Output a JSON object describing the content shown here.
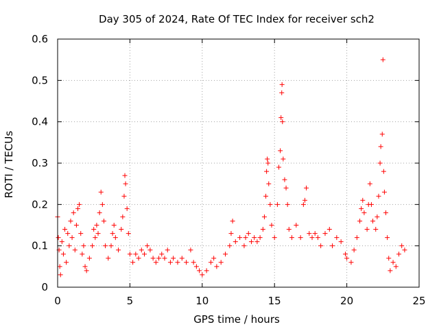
{
  "chart_data": {
    "type": "scatter",
    "title": "Day 305 of 2024, Rate Of TEC Index for receiver sch2",
    "xlabel": "GPS time / hours",
    "ylabel": "ROTI / TECUs",
    "xlim": [
      0,
      25
    ],
    "ylim": [
      0,
      0.6
    ],
    "xticks": [
      0,
      5,
      10,
      15,
      20,
      25
    ],
    "xtick_labels": [
      "0",
      "5",
      "10",
      "15",
      "20",
      "25"
    ],
    "yticks": [
      0,
      0.1,
      0.2,
      0.3,
      0.4,
      0.5,
      0.6
    ],
    "ytick_labels": [
      "0",
      "0.1",
      "0.2",
      "0.3",
      "0.4",
      "0.5",
      "0.6"
    ],
    "grid": true,
    "marker": "+",
    "series": [
      {
        "name": "sch2",
        "color": "#ff0000",
        "points": [
          [
            0.0,
            0.17
          ],
          [
            0.05,
            0.12
          ],
          [
            0.1,
            0.09
          ],
          [
            0.15,
            0.05
          ],
          [
            0.2,
            0.03
          ],
          [
            0.3,
            0.11
          ],
          [
            0.4,
            0.08
          ],
          [
            0.5,
            0.14
          ],
          [
            0.6,
            0.06
          ],
          [
            0.7,
            0.13
          ],
          [
            0.8,
            0.1
          ],
          [
            0.9,
            0.16
          ],
          [
            1.0,
            0.12
          ],
          [
            1.1,
            0.18
          ],
          [
            1.2,
            0.09
          ],
          [
            1.3,
            0.15
          ],
          [
            1.4,
            0.19
          ],
          [
            1.5,
            0.2
          ],
          [
            1.6,
            0.13
          ],
          [
            1.7,
            0.08
          ],
          [
            1.8,
            0.1
          ],
          [
            1.9,
            0.05
          ],
          [
            2.0,
            0.04
          ],
          [
            2.2,
            0.07
          ],
          [
            2.4,
            0.1
          ],
          [
            2.5,
            0.14
          ],
          [
            2.6,
            0.12
          ],
          [
            2.7,
            0.15
          ],
          [
            2.8,
            0.13
          ],
          [
            2.9,
            0.18
          ],
          [
            3.0,
            0.23
          ],
          [
            3.1,
            0.2
          ],
          [
            3.2,
            0.16
          ],
          [
            3.3,
            0.1
          ],
          [
            3.5,
            0.07
          ],
          [
            3.7,
            0.1
          ],
          [
            3.8,
            0.13
          ],
          [
            3.9,
            0.15
          ],
          [
            4.0,
            0.12
          ],
          [
            4.2,
            0.09
          ],
          [
            4.4,
            0.14
          ],
          [
            4.5,
            0.17
          ],
          [
            4.6,
            0.22
          ],
          [
            4.65,
            0.27
          ],
          [
            4.7,
            0.25
          ],
          [
            4.8,
            0.19
          ],
          [
            4.9,
            0.13
          ],
          [
            5.0,
            0.08
          ],
          [
            5.2,
            0.06
          ],
          [
            5.4,
            0.08
          ],
          [
            5.6,
            0.07
          ],
          [
            5.8,
            0.09
          ],
          [
            6.0,
            0.08
          ],
          [
            6.2,
            0.1
          ],
          [
            6.4,
            0.09
          ],
          [
            6.6,
            0.07
          ],
          [
            6.8,
            0.06
          ],
          [
            7.0,
            0.07
          ],
          [
            7.2,
            0.08
          ],
          [
            7.4,
            0.07
          ],
          [
            7.6,
            0.09
          ],
          [
            7.8,
            0.06
          ],
          [
            8.0,
            0.07
          ],
          [
            8.3,
            0.06
          ],
          [
            8.6,
            0.07
          ],
          [
            8.9,
            0.06
          ],
          [
            9.2,
            0.09
          ],
          [
            9.4,
            0.06
          ],
          [
            9.6,
            0.05
          ],
          [
            9.8,
            0.04
          ],
          [
            10.0,
            0.03
          ],
          [
            10.3,
            0.04
          ],
          [
            10.6,
            0.06
          ],
          [
            10.8,
            0.07
          ],
          [
            11.0,
            0.05
          ],
          [
            11.3,
            0.06
          ],
          [
            11.6,
            0.08
          ],
          [
            11.9,
            0.1
          ],
          [
            12.0,
            0.13
          ],
          [
            12.1,
            0.16
          ],
          [
            12.3,
            0.11
          ],
          [
            12.6,
            0.12
          ],
          [
            12.9,
            0.1
          ],
          [
            13.0,
            0.12
          ],
          [
            13.2,
            0.13
          ],
          [
            13.4,
            0.11
          ],
          [
            13.6,
            0.12
          ],
          [
            13.8,
            0.11
          ],
          [
            14.0,
            0.12
          ],
          [
            14.2,
            0.14
          ],
          [
            14.3,
            0.17
          ],
          [
            14.4,
            0.22
          ],
          [
            14.45,
            0.28
          ],
          [
            14.5,
            0.31
          ],
          [
            14.55,
            0.3
          ],
          [
            14.6,
            0.25
          ],
          [
            14.7,
            0.2
          ],
          [
            14.8,
            0.15
          ],
          [
            15.0,
            0.12
          ],
          [
            15.2,
            0.2
          ],
          [
            15.3,
            0.29
          ],
          [
            15.4,
            0.33
          ],
          [
            15.45,
            0.41
          ],
          [
            15.5,
            0.47
          ],
          [
            15.52,
            0.49
          ],
          [
            15.55,
            0.4
          ],
          [
            15.6,
            0.31
          ],
          [
            15.7,
            0.26
          ],
          [
            15.8,
            0.24
          ],
          [
            15.9,
            0.2
          ],
          [
            16.0,
            0.14
          ],
          [
            16.2,
            0.12
          ],
          [
            16.5,
            0.15
          ],
          [
            16.8,
            0.12
          ],
          [
            17.0,
            0.2
          ],
          [
            17.1,
            0.21
          ],
          [
            17.2,
            0.24
          ],
          [
            17.4,
            0.13
          ],
          [
            17.6,
            0.12
          ],
          [
            17.8,
            0.13
          ],
          [
            18.0,
            0.12
          ],
          [
            18.2,
            0.1
          ],
          [
            18.5,
            0.13
          ],
          [
            18.8,
            0.14
          ],
          [
            19.0,
            0.1
          ],
          [
            19.3,
            0.12
          ],
          [
            19.6,
            0.11
          ],
          [
            19.9,
            0.08
          ],
          [
            20.0,
            0.07
          ],
          [
            20.3,
            0.06
          ],
          [
            20.5,
            0.09
          ],
          [
            20.7,
            0.12
          ],
          [
            20.9,
            0.16
          ],
          [
            21.0,
            0.19
          ],
          [
            21.1,
            0.21
          ],
          [
            21.2,
            0.18
          ],
          [
            21.4,
            0.14
          ],
          [
            21.5,
            0.2
          ],
          [
            21.6,
            0.25
          ],
          [
            21.7,
            0.2
          ],
          [
            21.8,
            0.16
          ],
          [
            22.0,
            0.14
          ],
          [
            22.1,
            0.17
          ],
          [
            22.2,
            0.22
          ],
          [
            22.3,
            0.3
          ],
          [
            22.35,
            0.34
          ],
          [
            22.45,
            0.37
          ],
          [
            22.5,
            0.55
          ],
          [
            22.55,
            0.28
          ],
          [
            22.6,
            0.23
          ],
          [
            22.7,
            0.18
          ],
          [
            22.8,
            0.12
          ],
          [
            22.9,
            0.07
          ],
          [
            23.0,
            0.04
          ],
          [
            23.2,
            0.06
          ],
          [
            23.4,
            0.05
          ],
          [
            23.6,
            0.08
          ],
          [
            23.8,
            0.1
          ],
          [
            24.0,
            0.09
          ]
        ]
      }
    ]
  }
}
